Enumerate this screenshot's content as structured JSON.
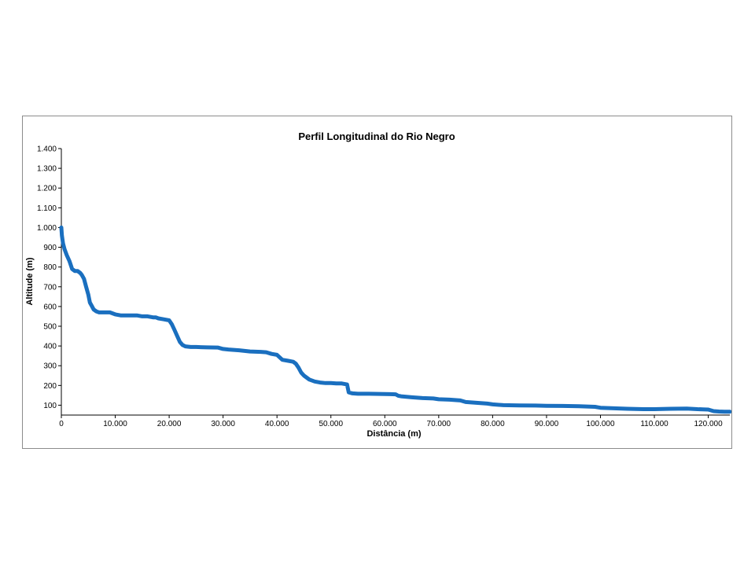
{
  "chart_data": {
    "type": "line",
    "title": "Perfil Longitudinal do Rio Negro",
    "xlabel": "Distância (m)",
    "ylabel": "Altitude (m)",
    "xlim": [
      0,
      124000
    ],
    "ylim": [
      50,
      1400
    ],
    "x_ticks": [
      0,
      10000,
      20000,
      30000,
      40000,
      50000,
      60000,
      70000,
      80000,
      90000,
      100000,
      110000,
      120000
    ],
    "x_tick_labels": [
      "0",
      "10.000",
      "20.000",
      "30.000",
      "40.000",
      "50.000",
      "60.000",
      "70.000",
      "80.000",
      "90.000",
      "100.000",
      "110.000",
      "120.000"
    ],
    "y_ticks": [
      100,
      200,
      300,
      400,
      500,
      600,
      700,
      800,
      900,
      1000,
      1100,
      1200,
      1300,
      1400
    ],
    "y_tick_labels": [
      "100",
      "200",
      "300",
      "400",
      "500",
      "600",
      "700",
      "800",
      "900",
      "1.000",
      "1.100",
      "1.200",
      "1.300",
      "1.400"
    ],
    "grid": false,
    "legend": "none",
    "series": [
      {
        "color": "#1a6fbf",
        "x": [
          0,
          100,
          300,
          600,
          1000,
          1500,
          2000,
          2500,
          3000,
          3500,
          3800,
          4200,
          4600,
          5000,
          5300,
          5700,
          6000,
          6500,
          7000,
          8000,
          9000,
          10000,
          11000,
          12000,
          13000,
          14000,
          15000,
          16000,
          17000,
          17500,
          18000,
          19000,
          20000,
          20500,
          21000,
          21500,
          22000,
          22500,
          23000,
          24000,
          25000,
          27000,
          29000,
          30000,
          31000,
          33000,
          35000,
          37000,
          38000,
          39000,
          40000,
          41000,
          42000,
          43000,
          43500,
          44000,
          44500,
          45000,
          45500,
          46000,
          47000,
          48000,
          49000,
          50000,
          51000,
          52000,
          53000,
          53300,
          54000,
          55000,
          57000,
          59000,
          61000,
          62000,
          62500,
          63000,
          65000,
          67000,
          69000,
          70000,
          72000,
          74000,
          75000,
          77000,
          79000,
          80000,
          82000,
          85000,
          88000,
          90000,
          93000,
          96000,
          97000,
          99000,
          100000,
          103000,
          105000,
          108000,
          110000,
          113000,
          116000,
          118000,
          119000,
          120000,
          121000,
          122000,
          123000,
          124000
        ],
        "y": [
          1000,
          960,
          920,
          890,
          860,
          830,
          790,
          780,
          780,
          770,
          760,
          740,
          700,
          660,
          620,
          600,
          585,
          575,
          570,
          570,
          570,
          560,
          555,
          555,
          555,
          555,
          550,
          550,
          545,
          545,
          540,
          535,
          530,
          510,
          480,
          450,
          420,
          405,
          398,
          395,
          395,
          393,
          392,
          385,
          382,
          378,
          372,
          370,
          368,
          360,
          355,
          330,
          325,
          320,
          310,
          290,
          265,
          250,
          240,
          230,
          220,
          215,
          212,
          212,
          210,
          210,
          205,
          165,
          160,
          158,
          158,
          157,
          156,
          155,
          148,
          145,
          140,
          136,
          134,
          130,
          128,
          124,
          116,
          112,
          108,
          104,
          100,
          99,
          98,
          97,
          96,
          95,
          94,
          92,
          87,
          84,
          82,
          80,
          80,
          82,
          83,
          80,
          79,
          78,
          70,
          68,
          67,
          67
        ]
      }
    ]
  }
}
